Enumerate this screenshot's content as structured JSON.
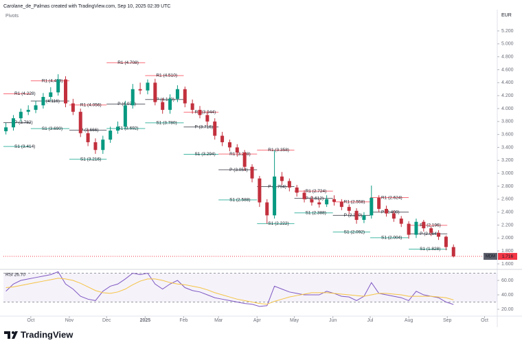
{
  "header": {
    "credit": "Carolane_de_Palmas created with TradingView.com, Sep 10, 2025 02:39 UTC",
    "indicator": "Pivots",
    "currency": "EUR",
    "logo": "TradingView"
  },
  "chart_data": {
    "type": "candlestick",
    "xlim": [
      8,
      403
    ],
    "xticks": [
      {
        "value": 30,
        "label": "Oct"
      },
      {
        "value": 61,
        "label": "Nov"
      },
      {
        "value": 91,
        "label": "Dec"
      },
      {
        "value": 122,
        "label": "2025"
      },
      {
        "value": 153,
        "label": "Feb"
      },
      {
        "value": 181,
        "label": "Mar"
      },
      {
        "value": 212,
        "label": "Apr"
      },
      {
        "value": 242,
        "label": "May"
      },
      {
        "value": 273,
        "label": "Jun"
      },
      {
        "value": 303,
        "label": "Jul"
      },
      {
        "value": 334,
        "label": "Aug"
      },
      {
        "value": 365,
        "label": "Sep"
      },
      {
        "value": 395,
        "label": "Oct"
      }
    ],
    "ylim": [
      1.536,
      5.359
    ],
    "yticks": [
      {
        "value": 5.2,
        "label": "5.200"
      },
      {
        "value": 5.0,
        "label": "5.000"
      },
      {
        "value": 4.8,
        "label": "4.800"
      },
      {
        "value": 4.6,
        "label": "4.600"
      },
      {
        "value": 4.4,
        "label": "4.400"
      },
      {
        "value": 4.2,
        "label": "4.200"
      },
      {
        "value": 4.0,
        "label": "4.000"
      },
      {
        "value": 3.8,
        "label": "3.800"
      },
      {
        "value": 3.6,
        "label": "3.600"
      },
      {
        "value": 3.4,
        "label": "3.400"
      },
      {
        "value": 3.2,
        "label": "3.200"
      },
      {
        "value": 3.0,
        "label": "3.000"
      },
      {
        "value": 2.8,
        "label": "2.800"
      },
      {
        "value": 2.6,
        "label": "2.600"
      },
      {
        "value": 2.4,
        "label": "2.400"
      },
      {
        "value": 2.2,
        "label": "2.200"
      },
      {
        "value": 2.0,
        "label": "2.000"
      },
      {
        "value": 1.8,
        "label": "1.800"
      },
      {
        "value": 1.6,
        "label": "1.600"
      }
    ],
    "up_color": "#089981",
    "down_color": "#c2303d",
    "candles": {
      "x": [
        10,
        16,
        22,
        28,
        34,
        40,
        46,
        52,
        58,
        64,
        70,
        76,
        82,
        88,
        94,
        100,
        106,
        112,
        118,
        124,
        130,
        136,
        142,
        148,
        154,
        160,
        166,
        172,
        178,
        184,
        190,
        196,
        202,
        208,
        214,
        220,
        226,
        232,
        238,
        244,
        250,
        256,
        262,
        268,
        274,
        280,
        286,
        292,
        298,
        304,
        310,
        316,
        322,
        328,
        334,
        340,
        346,
        352,
        358,
        364,
        370
      ],
      "open": [
        3.65,
        3.71,
        3.85,
        3.95,
        3.98,
        4.05,
        4.18,
        4.25,
        4.45,
        4.08,
        3.95,
        3.62,
        3.48,
        3.36,
        3.52,
        3.66,
        3.72,
        4.05,
        4.3,
        4.28,
        4.4,
        4.1,
        3.98,
        4.15,
        4.3,
        4.08,
        3.98,
        3.9,
        3.8,
        3.58,
        3.48,
        3.4,
        3.32,
        3.1,
        2.92,
        2.55,
        2.35,
        2.95,
        2.88,
        2.78,
        2.7,
        2.6,
        2.55,
        2.52,
        2.6,
        2.56,
        2.48,
        2.42,
        2.28,
        2.35,
        2.62,
        2.45,
        2.38,
        2.3,
        2.22,
        2.05,
        2.25,
        2.15,
        2.08,
        2.02,
        1.86
      ],
      "high": [
        3.78,
        3.9,
        4.0,
        4.05,
        4.12,
        4.24,
        4.33,
        4.53,
        4.5,
        4.15,
        4.0,
        3.68,
        3.54,
        3.58,
        3.72,
        3.8,
        4.12,
        4.38,
        4.4,
        4.45,
        4.46,
        4.16,
        4.22,
        4.36,
        4.34,
        4.14,
        4.04,
        3.96,
        3.85,
        3.64,
        3.52,
        3.45,
        3.36,
        3.14,
        2.96,
        2.6,
        3.36,
        3.02,
        2.92,
        2.82,
        2.74,
        2.65,
        2.6,
        2.66,
        2.66,
        2.6,
        2.52,
        2.46,
        2.4,
        2.81,
        2.66,
        2.5,
        2.42,
        2.34,
        2.26,
        2.3,
        2.28,
        2.18,
        2.12,
        2.04,
        1.9
      ],
      "low": [
        3.6,
        3.66,
        3.8,
        3.9,
        3.93,
        4.0,
        4.12,
        4.2,
        4.02,
        3.9,
        3.56,
        3.42,
        3.3,
        3.3,
        3.47,
        3.61,
        3.68,
        4.0,
        4.22,
        4.22,
        4.05,
        3.92,
        3.92,
        4.1,
        4.02,
        3.92,
        3.85,
        3.74,
        3.52,
        3.42,
        3.34,
        3.26,
        3.04,
        2.86,
        2.48,
        2.22,
        2.3,
        2.82,
        2.72,
        2.64,
        2.55,
        2.5,
        2.47,
        2.48,
        2.5,
        2.43,
        2.37,
        2.22,
        2.23,
        2.3,
        2.4,
        2.33,
        2.25,
        2.17,
        1.99,
        2.0,
        2.1,
        2.03,
        1.97,
        1.81,
        1.7
      ],
      "close": [
        3.71,
        3.85,
        3.95,
        3.98,
        4.05,
        4.18,
        4.25,
        4.45,
        4.08,
        3.95,
        3.62,
        3.48,
        3.36,
        3.52,
        3.66,
        3.72,
        4.05,
        4.3,
        4.28,
        4.4,
        4.1,
        3.98,
        4.15,
        4.3,
        4.08,
        3.98,
        3.9,
        3.8,
        3.58,
        3.48,
        3.4,
        3.32,
        3.1,
        2.92,
        2.55,
        2.35,
        2.95,
        2.88,
        2.78,
        2.7,
        2.6,
        2.55,
        2.52,
        2.6,
        2.56,
        2.48,
        2.42,
        2.28,
        2.35,
        2.62,
        2.45,
        2.38,
        2.3,
        2.22,
        2.05,
        2.25,
        2.15,
        2.08,
        2.02,
        1.86,
        1.716
      ]
    },
    "pivots": [
      {
        "color": "#f7525f",
        "segments": [
          {
            "label": "R1 (4.228)",
            "value": 4.228,
            "start": 8,
            "end": 30
          },
          {
            "label": "R1 (4.429)",
            "value": 4.429,
            "start": 30,
            "end": 61
          },
          {
            "label": "R1 (4.056)",
            "value": 4.056,
            "start": 61,
            "end": 91
          },
          {
            "label": "R1 (4.708)",
            "value": 4.708,
            "start": 91,
            "end": 122
          },
          {
            "label": "R1 (4.510)",
            "value": 4.51,
            "start": 122,
            "end": 153
          },
          {
            "label": "R1 (3.944)",
            "value": 3.944,
            "start": 153,
            "end": 181
          },
          {
            "label": "R1 (3.298)",
            "value": 3.298,
            "start": 181,
            "end": 212
          },
          {
            "label": "R1 (3.358)",
            "value": 3.358,
            "start": 212,
            "end": 242
          },
          {
            "label": "R1 (2.724)",
            "value": 2.724,
            "start": 242,
            "end": 273
          },
          {
            "label": "R1 (2.558)",
            "value": 2.558,
            "start": 273,
            "end": 303
          },
          {
            "label": "R1 (2.624)",
            "value": 2.624,
            "start": 303,
            "end": 334
          },
          {
            "label": "R1 (2.196)",
            "value": 2.196,
            "start": 334,
            "end": 365
          }
        ]
      },
      {
        "color": "#434651",
        "segments": [
          {
            "label": "P (3.782)",
            "value": 3.782,
            "start": 8,
            "end": 30
          },
          {
            "label": "P (4.116)",
            "value": 4.116,
            "start": 30,
            "end": 61
          },
          {
            "label": "P (3.666)",
            "value": 3.666,
            "start": 61,
            "end": 91
          },
          {
            "label": "P (4.070)",
            "value": 4.07,
            "start": 91,
            "end": 122
          },
          {
            "label": "P (4.140)",
            "value": 4.14,
            "start": 122,
            "end": 153
          },
          {
            "label": "P (3.716)",
            "value": 3.716,
            "start": 153,
            "end": 181
          },
          {
            "label": "P (3.054)",
            "value": 3.054,
            "start": 181,
            "end": 212
          },
          {
            "label": "P (2.794)",
            "value": 2.794,
            "start": 212,
            "end": 242
          },
          {
            "label": "P (2.612)",
            "value": 2.612,
            "start": 242,
            "end": 273
          },
          {
            "label": "P (2.350)",
            "value": 2.35,
            "start": 273,
            "end": 303
          },
          {
            "label": "P (2.400)",
            "value": 2.4,
            "start": 303,
            "end": 334
          },
          {
            "label": "P (2.064)",
            "value": 2.064,
            "start": 334,
            "end": 365
          }
        ]
      },
      {
        "color": "#22ab94",
        "segments": [
          {
            "label": "S1 (3.414)",
            "value": 3.414,
            "start": 8,
            "end": 30
          },
          {
            "label": "S1 (3.690)",
            "value": 3.69,
            "start": 30,
            "end": 61
          },
          {
            "label": "S1 (3.216)",
            "value": 3.216,
            "start": 61,
            "end": 91
          },
          {
            "label": "S1 (3.692)",
            "value": 3.692,
            "start": 91,
            "end": 122
          },
          {
            "label": "S1 (3.780)",
            "value": 3.78,
            "start": 122,
            "end": 153
          },
          {
            "label": "S1 (3.294)",
            "value": 3.294,
            "start": 153,
            "end": 181
          },
          {
            "label": "S1 (2.588)",
            "value": 2.588,
            "start": 181,
            "end": 212
          },
          {
            "label": "S1 (2.222)",
            "value": 2.222,
            "start": 212,
            "end": 242
          },
          {
            "label": "S1 (2.388)",
            "value": 2.388,
            "start": 242,
            "end": 273
          },
          {
            "label": "S1 (2.092)",
            "value": 2.092,
            "start": 273,
            "end": 303
          },
          {
            "label": "S1 (2.004)",
            "value": 2.004,
            "start": 303,
            "end": 334
          },
          {
            "label": "S1 (1.828)",
            "value": 1.828,
            "start": 334,
            "end": 365
          }
        ]
      }
    ],
    "last_price": {
      "symbol": "MDM",
      "value": 1.716,
      "color": "#f23645"
    },
    "rsi": {
      "title": "RSI 26.70",
      "ylim": [
        12.4,
        72.4
      ],
      "yticks": [
        {
          "value": 60,
          "label": "60.00"
        },
        {
          "value": 40,
          "label": "40.00"
        },
        {
          "value": 20,
          "label": "20.00"
        }
      ],
      "levels": [
        30,
        70
      ],
      "series": [
        {
          "color": "#7e57c2",
          "values": [
            45,
            55,
            60,
            62,
            64,
            66,
            68,
            72,
            55,
            48,
            38,
            34,
            32,
            45,
            52,
            55,
            62,
            70,
            68,
            70,
            55,
            48,
            55,
            60,
            50,
            46,
            44,
            40,
            36,
            34,
            32,
            30,
            28,
            27,
            24,
            25,
            52,
            48,
            44,
            42,
            40,
            40,
            40,
            45,
            42,
            38,
            37,
            32,
            38,
            57,
            42,
            40,
            38,
            36,
            32,
            45,
            40,
            38,
            36,
            30,
            26.7
          ]
        },
        {
          "color": "#f5c342",
          "values": [
            50,
            51,
            53,
            55,
            57,
            59,
            61,
            63,
            62,
            60,
            56,
            51,
            46,
            43,
            42,
            44,
            48,
            54,
            59,
            62,
            62,
            60,
            57,
            55,
            54,
            52,
            50,
            47,
            43,
            40,
            37,
            34,
            32,
            30,
            28,
            27,
            31,
            34,
            37,
            39,
            41,
            43,
            43,
            43,
            42,
            41,
            40,
            39,
            38,
            40,
            42,
            42,
            41,
            40,
            38,
            38,
            38,
            38,
            37,
            36,
            33
          ]
        }
      ]
    }
  }
}
